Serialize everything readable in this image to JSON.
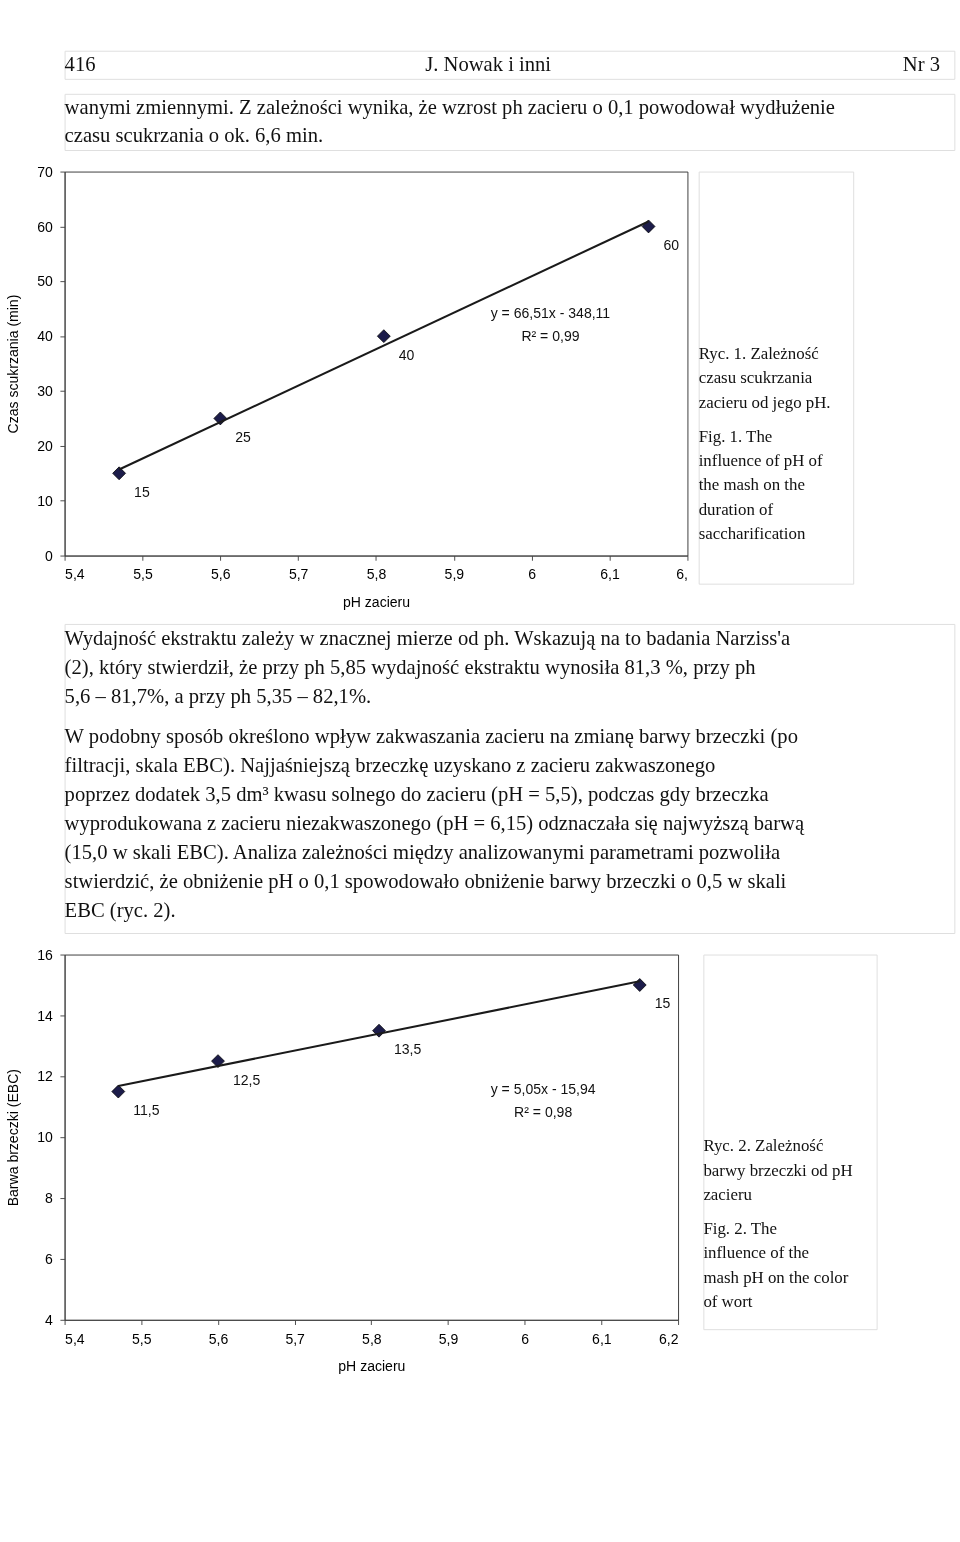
{
  "chart_data": [
    {
      "type": "scatter",
      "xlabel": "pH zacieru",
      "ylabel": "Czas scukrzania (min)",
      "xlim": [
        5.4,
        6.2
      ],
      "ylim": [
        0,
        70
      ],
      "grid": false,
      "xticks": [
        {
          "value": 5.4,
          "label": "5,4"
        },
        {
          "value": 5.5,
          "label": "5,5"
        },
        {
          "value": 5.6,
          "label": "5,6"
        },
        {
          "value": 5.7,
          "label": "5,7"
        },
        {
          "value": 5.8,
          "label": "5,8"
        },
        {
          "value": 5.9,
          "label": "5,9"
        },
        {
          "value": 6.0,
          "label": "6"
        },
        {
          "value": 6.1,
          "label": "6,1"
        },
        {
          "value": 6.2,
          "label": "6,"
        }
      ],
      "yticks": [
        0,
        10,
        20,
        30,
        40,
        50,
        60,
        70
      ],
      "series": [
        {
          "marker": "diamond",
          "color": "#1c1c4a",
          "x": [
            5.47,
            5.6,
            5.81,
            6.15
          ],
          "values": [
            15,
            25,
            40,
            60
          ],
          "value_labels": [
            "15",
            "25",
            "40",
            "60"
          ]
        },
        {
          "type": "line",
          "line_style": "solid",
          "color": "#1a1a1a",
          "x": [
            5.47,
            6.15
          ],
          "values": [
            15.7,
            60.9
          ]
        }
      ],
      "annotations": [
        "416",
        "J. Nowak i inni",
        "Nr 3",
        "wanymi zmiennymi. Z zależności wynika, że wzrost ph zacieru o 0,1 powodował wydłużenie czasu scukrzania o ok. 6,6 min.",
        "Ryc. 1. Zależność czasu scukrzania zacieru od jego pH.",
        "Fig. 1. The influence of pH of the mash on the duration of saccharification",
        "y = 66,51x - 348,11",
        "R² = 0,99"
      ]
    },
    {
      "type": "scatter",
      "xlabel": "pH zacieru",
      "ylabel": "Barwa brzeczki (EBC)",
      "xlim": [
        5.4,
        6.2
      ],
      "ylim": [
        4,
        16
      ],
      "grid": false,
      "xticks": [
        {
          "value": 5.4,
          "label": "5,4"
        },
        {
          "value": 5.5,
          "label": "5,5"
        },
        {
          "value": 5.6,
          "label": "5,6"
        },
        {
          "value": 5.7,
          "label": "5,7"
        },
        {
          "value": 5.8,
          "label": "5,8"
        },
        {
          "value": 5.9,
          "label": "5,9"
        },
        {
          "value": 6.0,
          "label": "6"
        },
        {
          "value": 6.1,
          "label": "6,1"
        },
        {
          "value": 6.2,
          "label": "6,2"
        }
      ],
      "yticks": [
        4,
        6,
        8,
        10,
        12,
        14,
        16
      ],
      "series": [
        {
          "marker": "diamond",
          "color": "#1c1c4a",
          "x": [
            5.47,
            5.6,
            5.81,
            6.15
          ],
          "values": [
            11.5,
            12.5,
            13.5,
            15
          ],
          "value_labels": [
            "11,5",
            "12,5",
            "13,5",
            "15"
          ]
        },
        {
          "type": "line",
          "line_style": "solid",
          "color": "#1a1a1a",
          "x": [
            5.47,
            6.15
          ],
          "values": [
            11.68,
            15.12
          ]
        }
      ],
      "annotations": [
        "Wydajność ekstraktu zależy w znacznej mierze od ph. Wskazują na to badania Narziss'a (2), który stwierdził, że przy ph 5,85 wydajność ekstraktu wynosiła 81,3 %, przy ph 5,6 – 81,7%, a przy ph 5,35 – 82,1%.",
        "W podobny sposób określono wpływ zakwaszania zacieru na zmianę barwy brzeczki (po filtracji, skala EBC). Najjaśniejszą brzeczkę uzyskano z zacieru zakwaszonego poprzez dodatek 3,5 dm³ kwasu solnego do zacieru (pH = 5,5), podczas gdy brzeczka wyprodukowana z zacieru niezakwaszonego (pH = 6,15) odznaczała się najwyższą barwą (15,0 w skali EBC). Analiza zależności między analizowanymi parametrami pozwoliła stwierdzić, że obniżenie pH o 0,1 spowodowało obniżenie barwy brzeczki o 0,5 w skali EBC (ryc. 2).",
        "Ryc. 2. Zależność barwy brzeczki od pH zacieru",
        "Fig. 2. The influence of the mash pH on the color of wort",
        "y = 5,05x - 15,94",
        "R² = 0,98"
      ]
    }
  ]
}
